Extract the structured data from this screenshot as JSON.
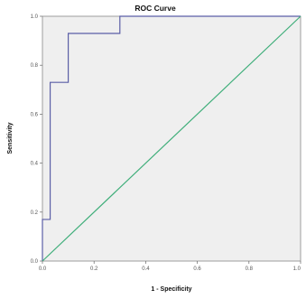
{
  "chart_data": {
    "type": "line",
    "title": "ROC Curve",
    "xlabel": "1 - Specificity",
    "ylabel": "Sensitivity",
    "xlim": [
      0,
      1
    ],
    "ylim": [
      0,
      1
    ],
    "xticks": [
      "0.0",
      "0.2",
      "0.4",
      "0.6",
      "0.8",
      "1.0"
    ],
    "yticks": [
      "0.0",
      "0.2",
      "0.4",
      "0.6",
      "0.8",
      "1.0"
    ],
    "grid": false,
    "plot_background": "#efefef",
    "series": [
      {
        "color": "#5a5ea6",
        "x": [
          0.0,
          0.0,
          0.03,
          0.03,
          0.1,
          0.1,
          0.3,
          0.3,
          1.0
        ],
        "y": [
          0.0,
          0.17,
          0.17,
          0.73,
          0.73,
          0.93,
          0.93,
          1.0,
          1.0
        ]
      },
      {
        "color": "#3fae7a",
        "x": [
          0.0,
          1.0
        ],
        "y": [
          0.0,
          1.0
        ]
      }
    ]
  }
}
